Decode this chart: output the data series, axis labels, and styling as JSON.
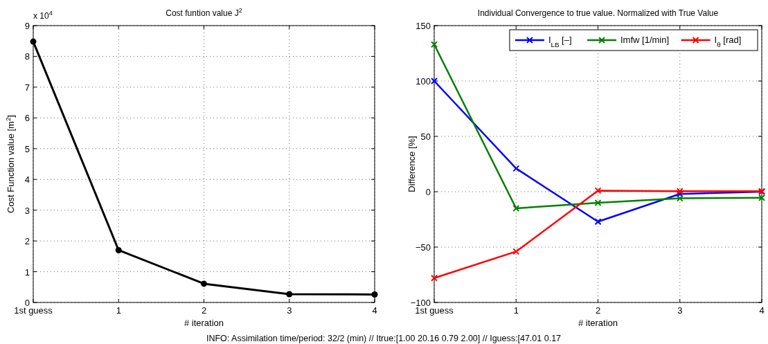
{
  "chart_data": [
    {
      "type": "line",
      "title": "Cost funtion value J$^{2}$",
      "xlabel": "# iteration",
      "ylabel": "Cost Function value [m$^{2}$]",
      "categories": [
        "1st guess",
        "1",
        "2",
        "3",
        "4"
      ],
      "series": [
        {
          "color": "#000000",
          "values": [
            8.48,
            1.7,
            0.61,
            0.27,
            0.26
          ]
        }
      ],
      "ylim": [
        0,
        9
      ],
      "yticks": [
        0,
        1,
        2,
        3,
        4,
        5,
        6,
        7,
        8,
        9
      ],
      "grid": true,
      "marker": "circle",
      "line_style": "solid",
      "annotations": [
        "x 10$^{4}$",
        "INFO: Assimilation time/period: 32/2 (min) // Itrue:[1.00 20.16 0.79 2.00] // Iguess:[47.01 0.17"
      ]
    },
    {
      "type": "line",
      "title": "Individual Convergence to true value. Normalized with True Value",
      "xlabel": "# iteration",
      "ylabel": "Difference [%]",
      "categories": [
        "1st guess",
        "1",
        "2",
        "3",
        "4"
      ],
      "series": [
        {
          "name": "I$_{LB}$ [–]",
          "color": "#0000ff",
          "values": [
            100,
            21,
            -27,
            -2,
            0
          ]
        },
        {
          "name": "Imfw [1/min]",
          "color": "#008000",
          "values": [
            133,
            -15,
            -10,
            -6,
            -5.5
          ]
        },
        {
          "name": "I$_{θ}$ [rad]",
          "color": "#ff0000",
          "values": [
            -78,
            -54,
            1,
            0.5,
            0.5
          ]
        }
      ],
      "ylim": [
        -100,
        150
      ],
      "yticks": [
        -100,
        -50,
        0,
        50,
        100,
        150
      ],
      "grid": true,
      "legend": "top right",
      "marker": "cross",
      "line_style": "solid"
    }
  ]
}
